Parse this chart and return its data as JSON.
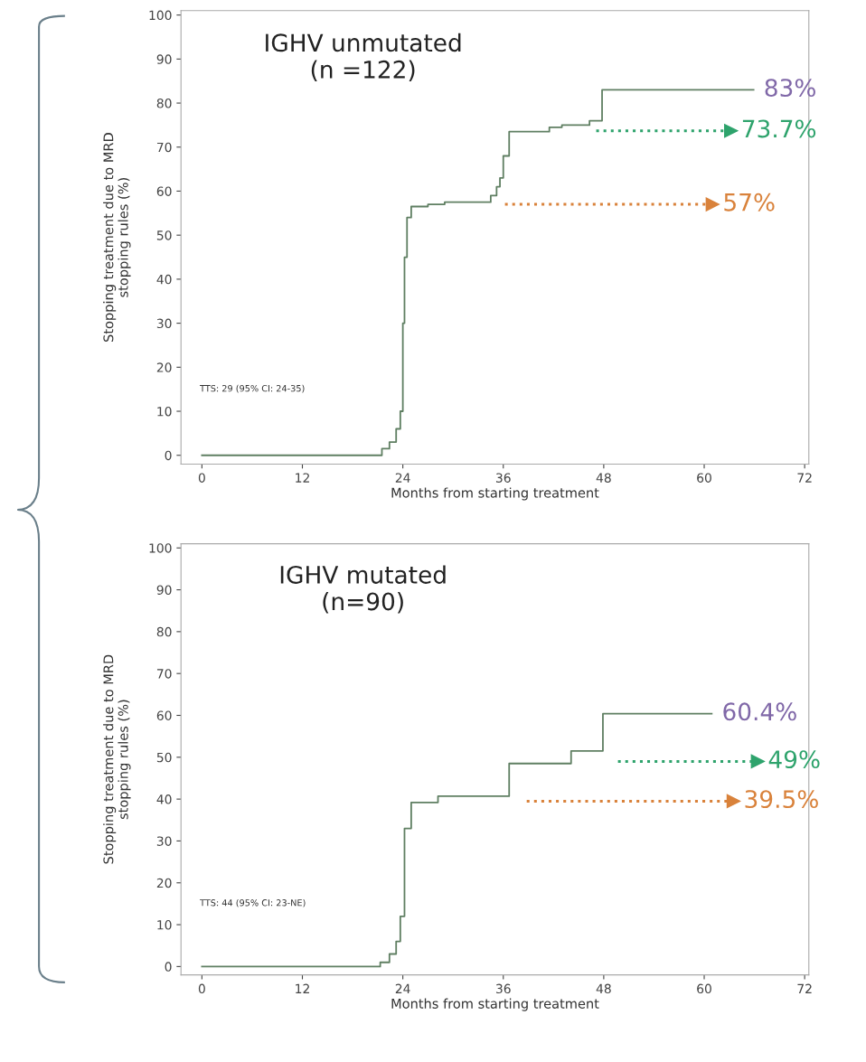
{
  "chart_data": [
    {
      "type": "step",
      "title": "IGHV unmutated\n(n =122)",
      "xlabel": "Months from starting treatment",
      "ylabel": "Stopping treatment due to MRD\nstopping rules (%)",
      "xlim": [
        -2.5,
        72.5
      ],
      "xticks": [
        0,
        12,
        24,
        36,
        48,
        60,
        72
      ],
      "ylim": [
        -2,
        101
      ],
      "yticks": [
        0,
        10,
        20,
        30,
        40,
        50,
        60,
        70,
        80,
        90,
        100
      ],
      "grid": false,
      "series": [
        {
          "name": "83%",
          "color": "#5f7f62",
          "x": [
            0,
            20.5,
            21.5,
            22.4,
            23.2,
            23.7,
            24.0,
            24.2,
            24.5,
            25.0,
            27.0,
            29.0,
            33.5,
            34.5,
            35.2,
            35.6,
            36.0,
            36.7,
            40.0,
            41.5,
            43.0,
            46.3,
            47.8,
            65.9
          ],
          "values": [
            0,
            0,
            1.5,
            3,
            6,
            10,
            30,
            45,
            54,
            56.5,
            57,
            57.5,
            57.5,
            59,
            61,
            63,
            68,
            73.5,
            73.5,
            74.5,
            75,
            76,
            83,
            83
          ]
        },
        {
          "name": "57%",
          "type": "line",
          "line_style": "dotted",
          "marker": "triangle",
          "color": "#d9823b",
          "x": [
            36.2,
            61.0
          ],
          "values": [
            57,
            57
          ]
        },
        {
          "name": "73.7%",
          "type": "line",
          "line_style": "dotted",
          "marker": "triangle",
          "color": "#2ea36c",
          "x": [
            47.1,
            63.2
          ],
          "values": [
            73.7,
            73.7
          ]
        }
      ],
      "annotations": [
        "TTS: 29 (95% CI: 24-35)"
      ]
    },
    {
      "type": "step",
      "title": "IGHV mutated\n(n=90)",
      "xlabel": "Months from starting treatment",
      "ylabel": "Stopping treatment due to MRD\nstopping rules (%)",
      "xlim": [
        -2.5,
        72.5
      ],
      "xticks": [
        0,
        12,
        24,
        36,
        48,
        60,
        72
      ],
      "ylim": [
        -2,
        101
      ],
      "yticks": [
        0,
        10,
        20,
        30,
        40,
        50,
        60,
        70,
        80,
        90,
        100
      ],
      "grid": false,
      "series": [
        {
          "name": "60.4%",
          "color": "#5f7f62",
          "x": [
            0,
            19.7,
            21.3,
            22.4,
            23.2,
            23.7,
            24.2,
            25.0,
            28.2,
            36.2,
            36.7,
            43.3,
            44.1,
            47.9,
            60.9
          ],
          "values": [
            0,
            0,
            1,
            3,
            6,
            12,
            33,
            39.2,
            40.7,
            40.7,
            48.5,
            48.5,
            51.5,
            60.4,
            60.4
          ]
        },
        {
          "name": "39.5%",
          "type": "line",
          "line_style": "dotted",
          "marker": "triangle",
          "color": "#d9823b",
          "x": [
            38.8,
            63.5
          ],
          "values": [
            39.5,
            39.5
          ]
        },
        {
          "name": "49%",
          "type": "line",
          "line_style": "dotted",
          "marker": "triangle",
          "color": "#2ea36c",
          "x": [
            49.7,
            66.4
          ],
          "values": [
            49,
            49
          ]
        }
      ],
      "annotations": [
        "TTS: 44 (95% CI: 23-NE)"
      ]
    }
  ]
}
